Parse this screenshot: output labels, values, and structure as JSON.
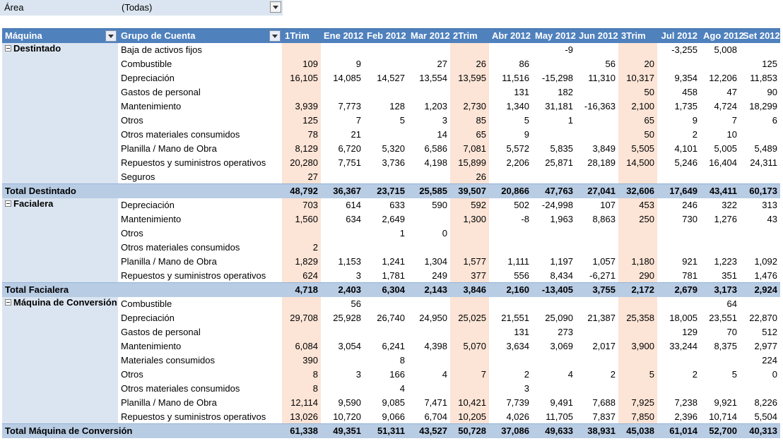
{
  "filter": {
    "label": "Área",
    "value": "(Todas)"
  },
  "headers": [
    "Máquina",
    "Grupo de Cuenta",
    "1Trim",
    "Ene 2012",
    "Feb 2012",
    "Mar 2012",
    "2Trim",
    "Abr 2012",
    "May 2012",
    "Jun 2012",
    "3Trim",
    "Jul 2012",
    "Ago 2012",
    "Set 2012"
  ],
  "groups": [
    {
      "name": "Destintado",
      "rows": [
        [
          "Baja de activos fijos",
          "",
          "",
          "",
          "",
          "",
          "",
          "-9",
          "",
          "",
          "-3,255",
          "5,008",
          ""
        ],
        [
          "Combustible",
          "109",
          "9",
          "",
          "27",
          "26",
          "86",
          "",
          "56",
          "20",
          "",
          "",
          "125"
        ],
        [
          "Depreciación",
          "16,105",
          "14,085",
          "14,527",
          "13,554",
          "13,595",
          "11,516",
          "-15,298",
          "11,310",
          "10,317",
          "9,354",
          "12,206",
          "11,853"
        ],
        [
          "Gastos de personal",
          "",
          "",
          "",
          "",
          "",
          "131",
          "182",
          "",
          "50",
          "458",
          "47",
          "90"
        ],
        [
          "Mantenimiento",
          "3,939",
          "7,773",
          "128",
          "1,203",
          "2,730",
          "1,340",
          "31,181",
          "-16,363",
          "2,100",
          "1,735",
          "4,724",
          "18,299"
        ],
        [
          "Otros",
          "125",
          "7",
          "5",
          "3",
          "85",
          "5",
          "1",
          "",
          "65",
          "9",
          "7",
          "6"
        ],
        [
          "Otros materiales consumidos",
          "78",
          "21",
          "",
          "14",
          "65",
          "9",
          "",
          "",
          "50",
          "2",
          "10",
          ""
        ],
        [
          "Planilla / Mano de Obra",
          "8,129",
          "6,720",
          "5,320",
          "6,586",
          "7,081",
          "5,572",
          "5,835",
          "3,849",
          "5,505",
          "4,101",
          "5,005",
          "5,489"
        ],
        [
          "Repuestos y suministros operativos",
          "20,280",
          "7,751",
          "3,736",
          "4,198",
          "15,899",
          "2,206",
          "25,871",
          "28,189",
          "14,500",
          "5,246",
          "16,404",
          "24,311"
        ],
        [
          "Seguros",
          "27",
          "",
          "",
          "",
          "26",
          "",
          "",
          "",
          "",
          "",
          "",
          ""
        ]
      ],
      "total_label": "Total Destintado",
      "total": [
        "48,792",
        "36,367",
        "23,715",
        "25,585",
        "39,507",
        "20,866",
        "47,763",
        "27,041",
        "32,606",
        "17,649",
        "43,411",
        "60,173"
      ]
    },
    {
      "name": "Facialera",
      "rows": [
        [
          "Depreciación",
          "703",
          "614",
          "633",
          "590",
          "592",
          "502",
          "-24,998",
          "107",
          "453",
          "246",
          "322",
          "313"
        ],
        [
          "Mantenimiento",
          "1,560",
          "634",
          "2,649",
          "",
          "1,300",
          "-8",
          "1,963",
          "8,863",
          "250",
          "730",
          "1,276",
          "43"
        ],
        [
          "Otros",
          "",
          "",
          "1",
          "0",
          "",
          "",
          "",
          "",
          "",
          "",
          "",
          ""
        ],
        [
          "Otros materiales consumidos",
          "2",
          "",
          "",
          "",
          "",
          "",
          "",
          "",
          "",
          "",
          "",
          ""
        ],
        [
          "Planilla / Mano de Obra",
          "1,829",
          "1,153",
          "1,241",
          "1,304",
          "1,577",
          "1,111",
          "1,197",
          "1,057",
          "1,180",
          "921",
          "1,223",
          "1,092"
        ],
        [
          "Repuestos y suministros operativos",
          "624",
          "3",
          "1,781",
          "249",
          "377",
          "556",
          "8,434",
          "-6,271",
          "290",
          "781",
          "351",
          "1,476"
        ]
      ],
      "total_label": "Total Facialera",
      "total": [
        "4,718",
        "2,403",
        "6,304",
        "2,143",
        "3,846",
        "2,160",
        "-13,405",
        "3,755",
        "2,172",
        "2,679",
        "3,173",
        "2,924"
      ]
    },
    {
      "name": "Máquina de Conversión",
      "rows": [
        [
          "Combustible",
          "",
          "56",
          "",
          "",
          "",
          "",
          "",
          "",
          "",
          "",
          "64",
          ""
        ],
        [
          "Depreciación",
          "29,708",
          "25,928",
          "26,740",
          "24,950",
          "25,025",
          "21,551",
          "25,090",
          "21,387",
          "25,358",
          "18,005",
          "23,551",
          "22,870"
        ],
        [
          "Gastos de personal",
          "",
          "",
          "",
          "",
          "",
          "131",
          "273",
          "",
          "",
          "129",
          "70",
          "512"
        ],
        [
          "Mantenimiento",
          "6,084",
          "3,054",
          "6,241",
          "4,398",
          "5,070",
          "3,634",
          "3,069",
          "2,017",
          "3,900",
          "33,244",
          "8,375",
          "2,977"
        ],
        [
          "Materiales consumidos",
          "390",
          "",
          "8",
          "",
          "",
          "",
          "",
          "",
          "",
          "",
          "",
          "224"
        ],
        [
          "Otros",
          "8",
          "3",
          "166",
          "4",
          "7",
          "2",
          "4",
          "2",
          "5",
          "2",
          "5",
          "0"
        ],
        [
          "Otros materiales consumidos",
          "8",
          "",
          "4",
          "",
          "",
          "3",
          "",
          "",
          "",
          "",
          "",
          ""
        ],
        [
          "Planilla / Mano de Obra",
          "12,114",
          "9,590",
          "9,085",
          "7,471",
          "10,421",
          "7,739",
          "9,491",
          "7,688",
          "7,925",
          "7,238",
          "9,921",
          "8,226"
        ],
        [
          "Repuestos y suministros operativos",
          "13,026",
          "10,720",
          "9,066",
          "6,704",
          "10,205",
          "4,026",
          "11,705",
          "7,837",
          "7,850",
          "2,396",
          "10,714",
          "5,504"
        ]
      ],
      "total_label": "Total Máquina de Conversión",
      "total": [
        "61,338",
        "49,351",
        "51,311",
        "43,527",
        "50,728",
        "37,086",
        "49,633",
        "38,931",
        "45,038",
        "61,014",
        "52,700",
        "40,313"
      ]
    }
  ]
}
